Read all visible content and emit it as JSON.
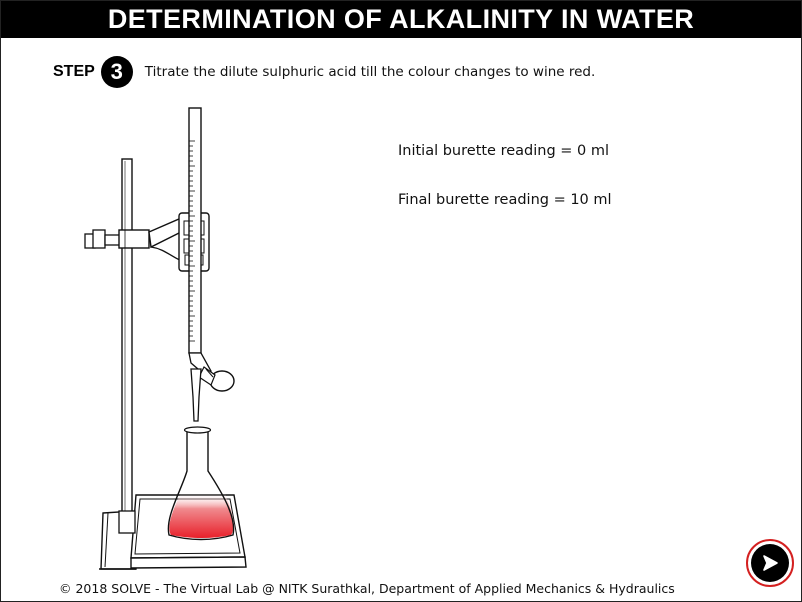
{
  "header": {
    "title": "DETERMINATION OF ALKALINITY IN WATER"
  },
  "step": {
    "label": "STEP",
    "number": "3",
    "instruction": "Titrate the dilute sulphuric acid till the colour changes to wine red."
  },
  "readings": {
    "initial": "Initial burette reading = 0 ml",
    "final": "Final burette reading = 10 ml"
  },
  "apparatus": {
    "solution_color": "#e8202a"
  },
  "footer": {
    "copyright": "© 2018 SOLVE - The Virtual Lab @ NITK Surathkal, Department of Applied Mechanics & Hydraulics"
  },
  "navigation": {
    "next_icon": "play-next-icon",
    "ring_color": "#d42020"
  }
}
